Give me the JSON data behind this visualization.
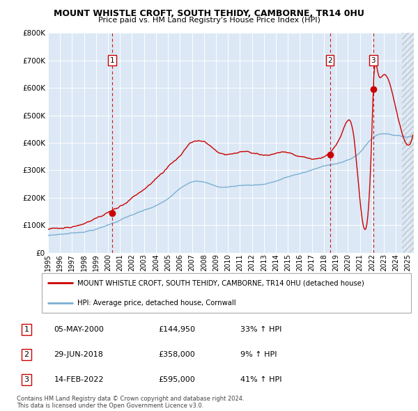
{
  "title": "MOUNT WHISTLE CROFT, SOUTH TEHIDY, CAMBORNE, TR14 0HU",
  "subtitle": "Price paid vs. HM Land Registry's House Price Index (HPI)",
  "legend_red": "MOUNT WHISTLE CROFT, SOUTH TEHIDY, CAMBORNE, TR14 0HU (detached house)",
  "legend_blue": "HPI: Average price, detached house, Cornwall",
  "footnote": "Contains HM Land Registry data © Crown copyright and database right 2024.\nThis data is licensed under the Open Government Licence v3.0.",
  "ylim": [
    0,
    800000
  ],
  "yticks": [
    0,
    100000,
    200000,
    300000,
    400000,
    500000,
    600000,
    700000,
    800000
  ],
  "xlim_start": 1995.0,
  "xlim_end": 2025.5,
  "xticks": [
    1995,
    1996,
    1997,
    1998,
    1999,
    2000,
    2001,
    2002,
    2003,
    2004,
    2005,
    2006,
    2007,
    2008,
    2009,
    2010,
    2011,
    2012,
    2013,
    2014,
    2015,
    2016,
    2017,
    2018,
    2019,
    2020,
    2021,
    2022,
    2023,
    2024,
    2025
  ],
  "plot_bg": "#dce8f5",
  "grid_color": "#b8cfe8",
  "red_color": "#cc0000",
  "blue_color": "#7bafd4",
  "hatch_start": 2024.5,
  "sales": [
    {
      "label": "1",
      "date_x": 2000.35,
      "price": 144950,
      "pct": "33%",
      "date_str": "05-MAY-2000",
      "price_str": "£144,950"
    },
    {
      "label": "2",
      "date_x": 2018.5,
      "price": 358000,
      "pct": "9%",
      "date_str": "29-JUN-2018",
      "price_str": "£358,000"
    },
    {
      "label": "3",
      "date_x": 2022.12,
      "price": 595000,
      "pct": "41%",
      "date_str": "14-FEB-2022",
      "price_str": "£595,000"
    }
  ],
  "red_anchors_x": [
    1995.0,
    1997.0,
    1999.0,
    2000.35,
    2003.0,
    2005.0,
    2007.5,
    2008.0,
    2009.5,
    2011.0,
    2013.0,
    2015.0,
    2018.5,
    2019.5,
    2020.5,
    2022.0,
    2022.12,
    2022.5,
    2023.0,
    2023.8,
    2024.5,
    2025.5
  ],
  "red_anchors_y": [
    85000,
    95000,
    120000,
    144950,
    220000,
    300000,
    395000,
    390000,
    345000,
    355000,
    345000,
    360000,
    358000,
    435000,
    415000,
    430000,
    595000,
    650000,
    640000,
    560000,
    430000,
    435000
  ],
  "blue_anchors_x": [
    1995.0,
    1997.0,
    1999.5,
    2002.0,
    2005.0,
    2007.5,
    2009.0,
    2011.0,
    2013.0,
    2015.0,
    2017.0,
    2019.0,
    2021.0,
    2022.0,
    2023.0,
    2024.0,
    2025.5
  ],
  "blue_anchors_y": [
    62000,
    72000,
    95000,
    140000,
    195000,
    265000,
    245000,
    248000,
    255000,
    280000,
    305000,
    330000,
    370000,
    420000,
    440000,
    435000,
    435000
  ]
}
